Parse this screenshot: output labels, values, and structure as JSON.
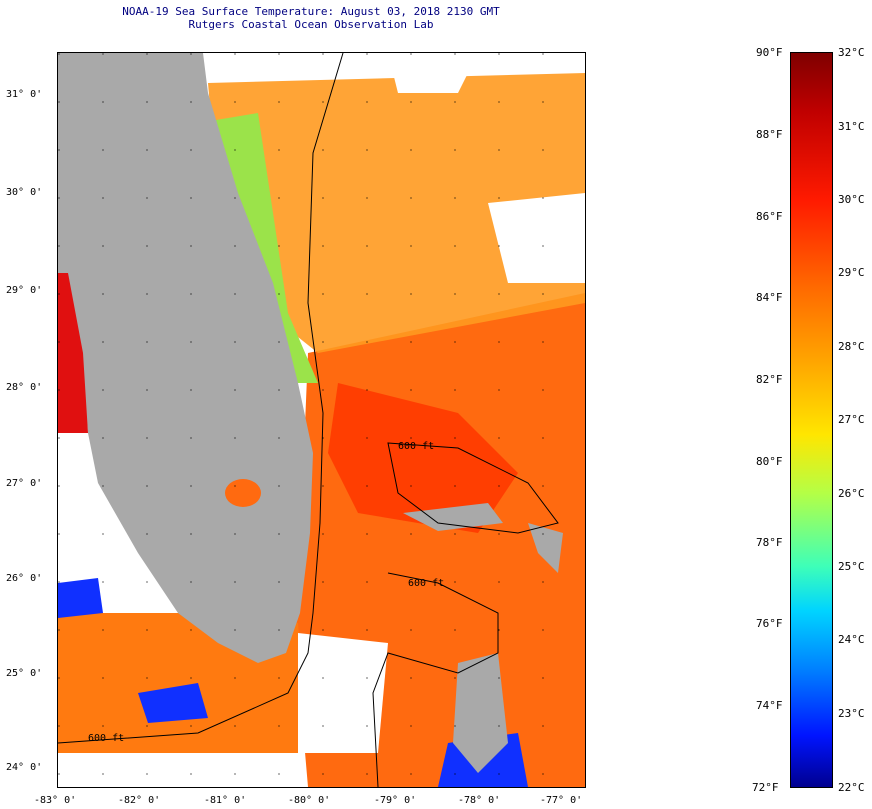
{
  "header": {
    "title_line1": "NOAA-19 Sea Surface Temperature:  August 03, 2018 2130 GMT",
    "title_line2": "Rutgers Coastal Ocean Observation Lab"
  },
  "map": {
    "lon_ticks": [
      "-83° 0'",
      "-82° 0'",
      "-81° 0'",
      "-80° 0'",
      "-79° 0'",
      "-78° 0'",
      "-77° 0'"
    ],
    "lat_ticks": [
      "31° 0'",
      "30° 0'",
      "29° 0'",
      "28° 0'",
      "27° 0'",
      "26° 0'",
      "25° 0'",
      "24° 0'"
    ],
    "contour_labels": [
      "600 ft",
      "600 ft",
      "600 ft"
    ],
    "colors": {
      "land": "#a9a9a9",
      "cloud": "#ffffff",
      "warm": "#ff6a10"
    }
  },
  "colorbar": {
    "fahrenheit_labels": [
      "90°F",
      "88°F",
      "86°F",
      "84°F",
      "82°F",
      "80°F",
      "78°F",
      "76°F",
      "74°F",
      "72°F"
    ],
    "celsius_labels": [
      "32°C",
      "31°C",
      "30°C",
      "29°C",
      "28°C",
      "27°C",
      "26°C",
      "25°C",
      "24°C",
      "23°C",
      "22°C"
    ]
  }
}
